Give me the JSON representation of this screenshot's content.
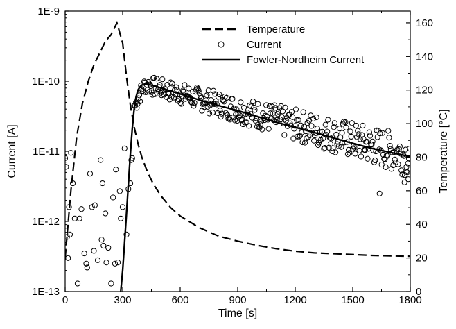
{
  "chart_data": {
    "type": "line",
    "xlabel": "Time [s]",
    "ylabel_left": "Current [A]",
    "ylabel_right": "Temperature [°C]",
    "xlim": [
      0,
      1800
    ],
    "ylim_left": [
      1e-13,
      1e-09
    ],
    "left_scale": "log",
    "ylim_right": [
      0,
      167
    ],
    "x_ticks": [
      0,
      300,
      600,
      900,
      1200,
      1500,
      1800
    ],
    "x_tick_labels": [
      "0",
      "300",
      "600",
      "900",
      "1200",
      "1500",
      "1800"
    ],
    "y_left_ticks": [
      1e-13,
      1e-12,
      1e-11,
      1e-10,
      1e-09
    ],
    "y_left_tick_labels": [
      "1E-13",
      "1E-12",
      "1E-11",
      "1E-10",
      "1E-9"
    ],
    "y_right_ticks": [
      0,
      20,
      40,
      60,
      80,
      100,
      120,
      140,
      160
    ],
    "y_right_tick_labels": [
      "0",
      "20",
      "40",
      "60",
      "80",
      "100",
      "120",
      "140",
      "160"
    ],
    "grid": false,
    "legend_position": "top-right",
    "series": [
      {
        "name": "Temperature",
        "axis": "right",
        "style": "dashed",
        "x": [
          0,
          30,
          60,
          90,
          120,
          150,
          180,
          210,
          240,
          270,
          300,
          320,
          340,
          360,
          380,
          400,
          430,
          460,
          500,
          550,
          600,
          700,
          800,
          900,
          1000,
          1100,
          1200,
          1300,
          1400,
          1500,
          1600,
          1700,
          1800
        ],
        "y": [
          20,
          60,
          92,
          112,
          125,
          135,
          142,
          149,
          153,
          160,
          148,
          128,
          111,
          98,
          88,
          80,
          71,
          64,
          57,
          50,
          45,
          38,
          33,
          30,
          27.5,
          25.5,
          24,
          23,
          22.5,
          22,
          21.5,
          21.2,
          21
        ]
      },
      {
        "name": "Current",
        "axis": "left",
        "style": "open-circles",
        "x": [
          0,
          5,
          10,
          15,
          20,
          25,
          30,
          40,
          50,
          65,
          75,
          85,
          100,
          110,
          115,
          130,
          140,
          150,
          155,
          170,
          185,
          190,
          195,
          200,
          210,
          215,
          225,
          240,
          250,
          260,
          265,
          275,
          285,
          290,
          300,
          310,
          320,
          330,
          340,
          345,
          350,
          360
        ],
        "y": [
          8e-12,
          6e-12,
          6e-13,
          3e-13,
          1.6e-12,
          6.5e-13,
          9.5e-12,
          3.5e-12,
          1.1e-12,
          1.3e-13,
          1.1e-12,
          1.5e-12,
          3.5e-13,
          2.5e-13,
          2.2e-13,
          4.8e-12,
          1.6e-12,
          3.8e-13,
          1.7e-12,
          2.8e-13,
          7.5e-12,
          5.5e-13,
          3.5e-12,
          4.5e-13,
          1.3e-12,
          2.6e-13,
          4.2e-13,
          1.3e-13,
          2.2e-12,
          2.5e-13,
          5.5e-12,
          2.6e-13,
          2.7e-12,
          1.1e-12,
          1.6e-12,
          1.1e-11,
          6.5e-13,
          2.9e-12,
          3.5e-12,
          7.5e-12,
          8e-12,
          4.5e-11
        ]
      },
      {
        "name": "Fowler-Nordheim Current",
        "axis": "left",
        "style": "solid",
        "x": [
          290,
          300,
          310,
          320,
          330,
          340,
          350,
          360,
          370,
          380,
          390,
          400,
          420,
          450,
          500,
          600,
          700,
          800,
          900,
          1000,
          1100,
          1200,
          1300,
          1400,
          1500,
          1600,
          1700,
          1800
        ],
        "y": [
          1e-13,
          2e-13,
          5e-13,
          1.3e-12,
          3.5e-12,
          9e-12,
          2.1e-11,
          4e-11,
          6e-11,
          7.5e-11,
          8.3e-11,
          8.8e-11,
          9.2e-11,
          8.8e-11,
          8e-11,
          6.6e-11,
          5.4e-11,
          4.5e-11,
          3.8e-11,
          3.15e-11,
          2.6e-11,
          2.2e-11,
          1.85e-11,
          1.55e-11,
          1.3e-11,
          1.1e-11,
          9.6e-12,
          8.4e-12
        ]
      }
    ]
  }
}
